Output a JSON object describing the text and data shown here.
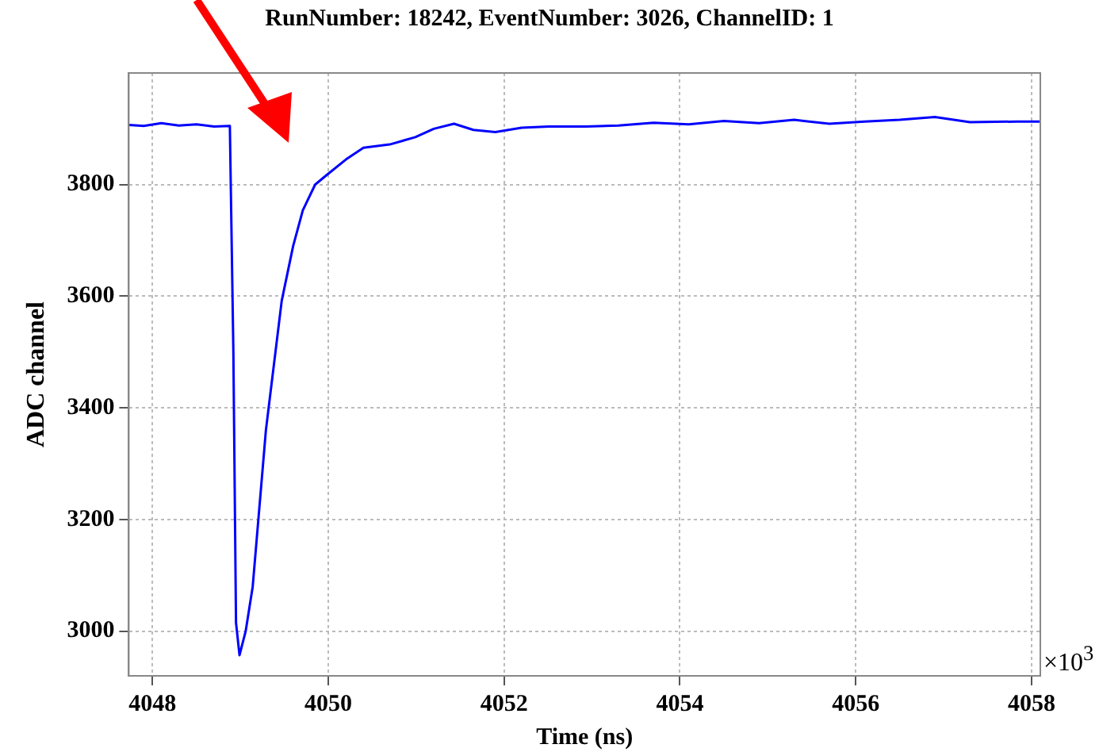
{
  "chart_data": {
    "type": "line",
    "title": "RunNumber: 18242, EventNumber: 3026, ChannelID: 1",
    "xlabel": "Time (ns)",
    "ylabel": "ADC channel",
    "annotations": [
      "×10$^{3}$"
    ],
    "x": [
      4047.73,
      4047.9,
      4048.1,
      4048.3,
      4048.5,
      4048.7,
      4048.88,
      4048.92,
      4048.95,
      4048.99,
      4049.06,
      4049.14,
      4049.29,
      4049.47,
      4049.6,
      4049.71,
      4049.85,
      4049.98,
      4050.2,
      4050.4,
      4050.7,
      4050.99,
      4051.2,
      4051.43,
      4051.65,
      4051.9,
      4052.2,
      4052.51,
      4052.93,
      4053.3,
      4053.7,
      4054.1,
      4054.5,
      4054.9,
      4055.3,
      4055.7,
      4056.1,
      4056.5,
      4056.9,
      4057.3,
      4057.84,
      4058.1
    ],
    "series": [
      {
        "color": "#0000ff",
        "values": [
          3907,
          3905,
          3910,
          3906,
          3908,
          3904,
          3905,
          3500,
          3015,
          2957,
          3000,
          3080,
          3360,
          3592,
          3690,
          3754,
          3800,
          3817,
          3845,
          3866,
          3872,
          3885,
          3900,
          3909,
          3898,
          3894,
          3902,
          3904,
          3904,
          3906,
          3911,
          3908,
          3914,
          3910,
          3916,
          3909,
          3913,
          3916,
          3921,
          3912,
          3913,
          3913
        ]
      }
    ],
    "xlim": [
      4047.73,
      4058.1
    ],
    "xticks": [
      4048,
      4050,
      4052,
      4054,
      4056,
      4058
    ],
    "ylim": [
      2920,
      4000
    ],
    "yticks": [
      3000,
      3200,
      3400,
      3600,
      3800
    ],
    "grid": true,
    "legend": false,
    "marker": "none",
    "line_style": "solid"
  }
}
